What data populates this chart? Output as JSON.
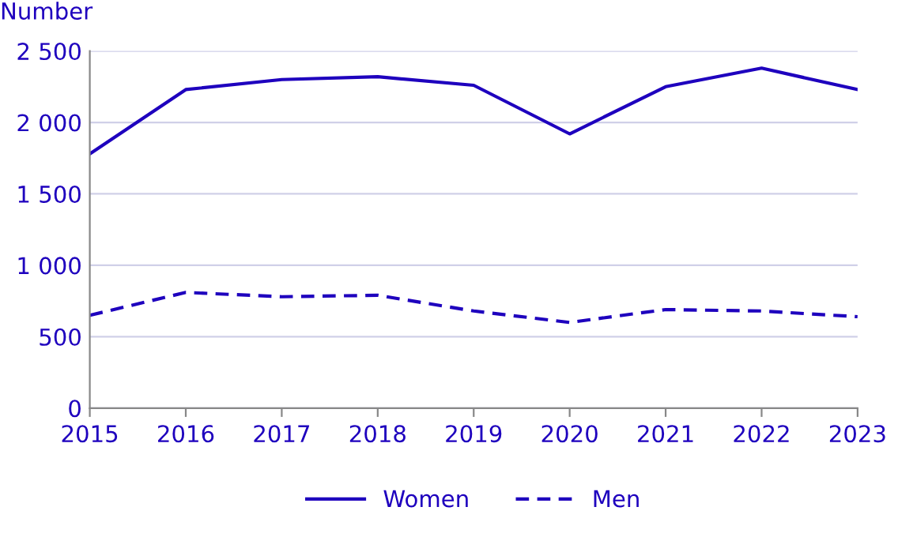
{
  "chart_data": {
    "type": "line",
    "ylabel": "Number",
    "x": [
      2015,
      2016,
      2017,
      2018,
      2019,
      2020,
      2021,
      2022,
      2023
    ],
    "series": [
      {
        "name": "Women",
        "color": "#1e00be",
        "line_style": "solid",
        "values": [
          1780,
          2230,
          2300,
          2320,
          2260,
          1920,
          2250,
          2380,
          2230
        ]
      },
      {
        "name": "Men",
        "color": "#1e00be",
        "line_style": "dashed",
        "values": [
          650,
          810,
          780,
          790,
          680,
          600,
          690,
          680,
          640
        ]
      }
    ],
    "xlim": [
      2015,
      2023
    ],
    "xticks": [
      2015,
      2016,
      2017,
      2018,
      2019,
      2020,
      2021,
      2022,
      2023
    ],
    "ylim": [
      0,
      2500
    ],
    "yticks": [
      0,
      500,
      {
        "value": 1000,
        "label": "1 000"
      },
      {
        "value": 1500,
        "label": "1 500"
      },
      {
        "value": 2000,
        "label": "2 000"
      },
      {
        "value": 2500,
        "label": "2 500"
      }
    ],
    "grid": "y",
    "legend": "bottom",
    "marker": "none"
  }
}
